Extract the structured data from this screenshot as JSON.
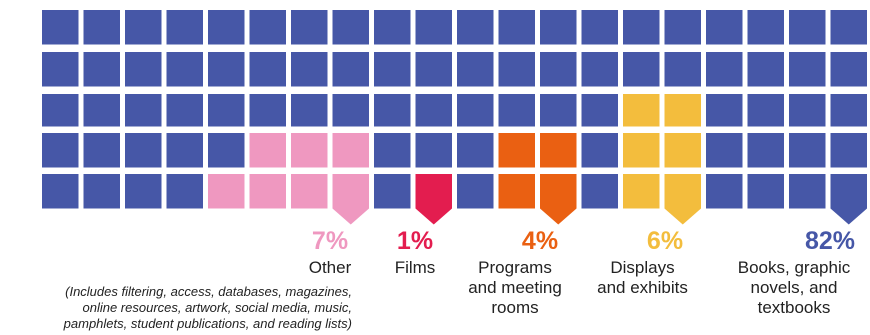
{
  "chart_data": {
    "type": "waffle",
    "rows": 5,
    "columns": 20,
    "series": [
      {
        "category": "Other",
        "percent": "7%",
        "value": 7,
        "color": "#ef98c0",
        "note": "(Includes filtering, access, databases, magazines,\nonline resources, artwork, social media, music,\npamphlets, student publications, and reading lists)"
      },
      {
        "category": "Films",
        "percent": "1%",
        "value": 1,
        "color": "#e31d4f"
      },
      {
        "category": "Programs\nand meeting\nrooms",
        "percent": "4%",
        "value": 4,
        "color": "#ea6012"
      },
      {
        "category": "Displays\nand exhibits",
        "percent": "6%",
        "value": 6,
        "color": "#f3bd3d"
      },
      {
        "category": "Books, graphic\nnovels, and\ntextbooks",
        "percent": "82%",
        "value": 82,
        "color": "#4657a7"
      }
    ]
  }
}
